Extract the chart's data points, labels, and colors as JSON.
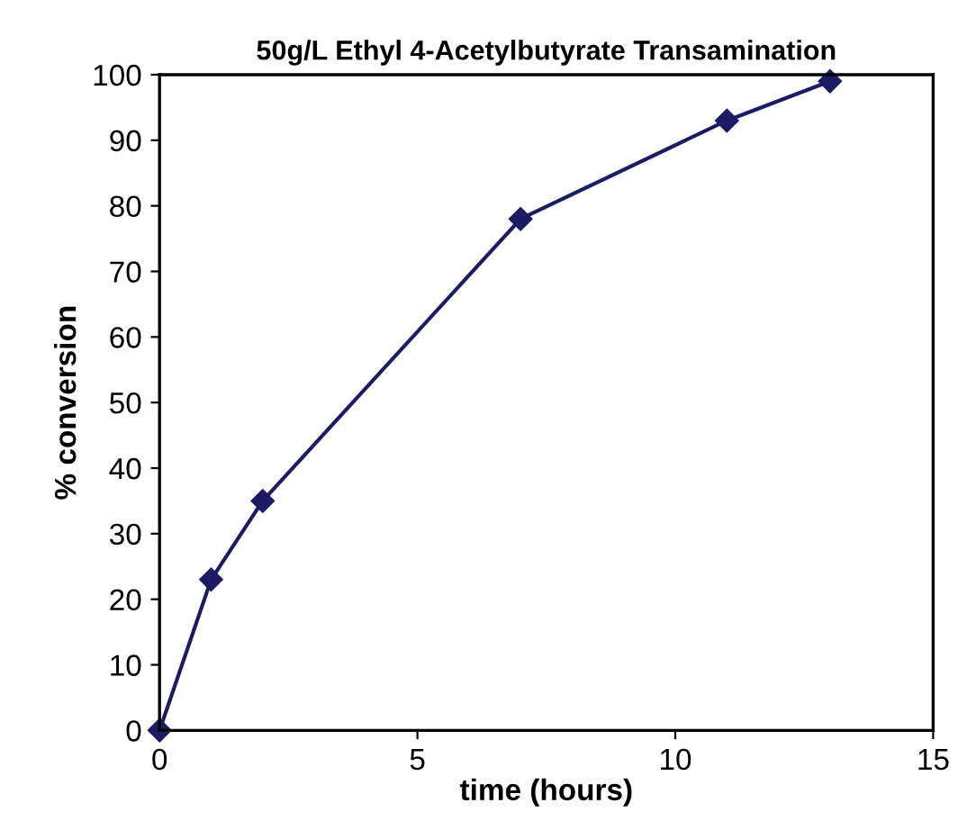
{
  "chart_data": {
    "type": "line",
    "title": "50g/L Ethyl 4-Acetylbutyrate Transamination",
    "xlabel": "time (hours)",
    "ylabel": "% conversion",
    "x": [
      0,
      1,
      2,
      7,
      11,
      13
    ],
    "series": [
      {
        "color": "#1c1c64",
        "values": [
          0,
          23,
          35,
          78,
          93,
          99
        ]
      }
    ],
    "xlim": [
      0,
      15
    ],
    "xticks": [
      0,
      5,
      10,
      15
    ],
    "ylim": [
      0,
      100
    ],
    "yticks": [
      0,
      10,
      20,
      30,
      40,
      50,
      60,
      70,
      80,
      90,
      100
    ],
    "marker": "diamond",
    "line_style": "solid",
    "grid": false,
    "legend": false
  }
}
